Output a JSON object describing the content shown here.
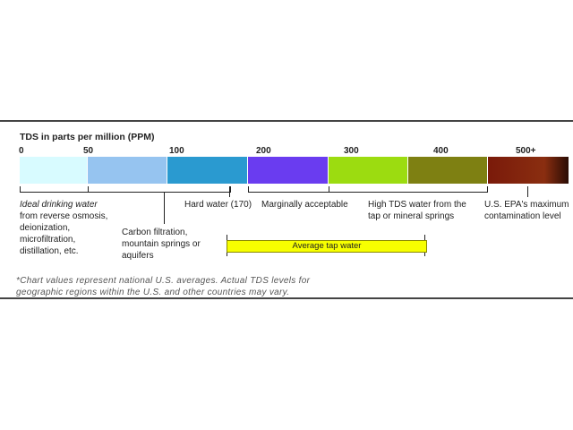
{
  "title": "TDS in parts per million (PPM)",
  "ticks": [
    "0",
    "50",
    "100",
    "200",
    "300",
    "400",
    "500+"
  ],
  "segments": [
    {
      "color": "#d8fbff"
    },
    {
      "color": "#96c4f0"
    },
    {
      "color": "#2a9ad0"
    },
    {
      "color": "#6a3cf0"
    },
    {
      "color": "#9cdc10"
    },
    {
      "color": "#7e8012"
    },
    {
      "color": "#7a1a0a"
    }
  ],
  "labels": {
    "ideal_italic": "Ideal drinking water",
    "ideal_rest_1": "from reverse osmosis,",
    "ideal_rest_2": "deionization,",
    "ideal_rest_3": "microfiltration,",
    "ideal_rest_4": "distillation, etc.",
    "carbon_1": "Carbon filtration,",
    "carbon_2": "mountain springs or",
    "carbon_3": "aquifers",
    "hard": "Hard water (170)",
    "marginal": "Marginally acceptable",
    "high_1": "High TDS water from the",
    "high_2": "tap or mineral springs",
    "epa_1": "U.S. EPA's maximum",
    "epa_2": "contamination level"
  },
  "average": "Average tap water",
  "note_1": "*Chart values represent national U.S. averages.  Actual TDS levels for",
  "note_2": "geographic regions within the U.S. and other countries may vary."
}
